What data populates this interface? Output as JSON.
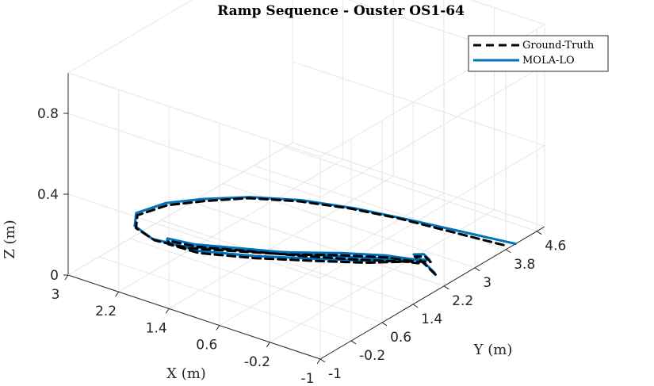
{
  "chart_data": {
    "type": "line",
    "projection": "3d",
    "title": "Ramp Sequence - Ouster OS1-64",
    "xlabel": "X (m)",
    "ylabel": "Y (m)",
    "zlabel": "Z (m)",
    "x_ticks": [
      "3",
      "2.2",
      "1.4",
      "0.6",
      "-0.2",
      "-1"
    ],
    "y_ticks": [
      "-1",
      "-0.2",
      "0.6",
      "1.4",
      "2.2",
      "3",
      "3.8",
      "4.6"
    ],
    "z_ticks": [
      "0",
      "0.4",
      "0.8"
    ],
    "xlim": [
      -1,
      3
    ],
    "ylim": [
      -1,
      4.8
    ],
    "zlim": [
      0,
      1
    ],
    "grid": true,
    "legend": {
      "placement": "top-right",
      "entries": [
        "Ground-Truth",
        "MOLA-LO"
      ]
    },
    "series": [
      {
        "name": "Ground-Truth",
        "color": "#000000",
        "style": "dashed",
        "points": [
          [
            -0.9,
            3.9,
            0.0
          ],
          [
            -0.3,
            3.5,
            0.05
          ],
          [
            0.3,
            3.1,
            0.1
          ],
          [
            0.8,
            2.7,
            0.14
          ],
          [
            1.3,
            2.2,
            0.18
          ],
          [
            1.8,
            1.7,
            0.2
          ],
          [
            2.2,
            1.2,
            0.2
          ],
          [
            2.5,
            0.75,
            0.2
          ],
          [
            2.7,
            0.3,
            0.18
          ],
          [
            2.6,
            0.1,
            0.15
          ],
          [
            2.3,
            0.1,
            0.12
          ],
          [
            1.9,
            0.3,
            0.1
          ],
          [
            1.4,
            0.8,
            0.08
          ],
          [
            0.9,
            1.3,
            0.06
          ],
          [
            0.4,
            1.9,
            0.04
          ],
          [
            0.0,
            2.35,
            0.02
          ],
          [
            -0.25,
            2.6,
            0.0
          ],
          [
            -0.35,
            2.6,
            0.0
          ],
          [
            -0.25,
            2.4,
            0.02
          ],
          [
            0.15,
            1.85,
            0.05
          ],
          [
            0.7,
            1.25,
            0.08
          ],
          [
            1.25,
            0.7,
            0.11
          ],
          [
            1.75,
            0.25,
            0.13
          ],
          [
            2.05,
            0.05,
            0.15
          ],
          [
            2.0,
            -0.05,
            0.15
          ],
          [
            1.6,
            0.1,
            0.13
          ],
          [
            1.05,
            0.65,
            0.1
          ],
          [
            0.5,
            1.3,
            0.07
          ],
          [
            0.05,
            1.9,
            0.04
          ],
          [
            -0.3,
            2.45,
            0.02
          ],
          [
            -0.45,
            2.75,
            0.0
          ],
          [
            -0.3,
            2.85,
            0.0
          ],
          [
            -0.2,
            2.75,
            0.0
          ],
          [
            -0.45,
            2.55,
            0.02
          ],
          [
            -0.9,
            2.15,
            0.05
          ]
        ]
      },
      {
        "name": "MOLA-LO",
        "color": "#0072BD",
        "style": "solid",
        "points": [
          [
            -1.0,
            4.05,
            0.0
          ],
          [
            -0.4,
            3.6,
            0.05
          ],
          [
            0.2,
            3.15,
            0.1
          ],
          [
            0.75,
            2.75,
            0.14
          ],
          [
            1.3,
            2.25,
            0.18
          ],
          [
            1.8,
            1.75,
            0.2
          ],
          [
            2.25,
            1.25,
            0.2
          ],
          [
            2.55,
            0.8,
            0.2
          ],
          [
            2.75,
            0.35,
            0.18
          ],
          [
            2.65,
            0.15,
            0.15
          ],
          [
            2.35,
            0.12,
            0.12
          ],
          [
            1.95,
            0.32,
            0.1
          ],
          [
            1.45,
            0.82,
            0.08
          ],
          [
            0.95,
            1.35,
            0.06
          ],
          [
            0.45,
            1.95,
            0.04
          ],
          [
            0.05,
            2.4,
            0.02
          ],
          [
            -0.2,
            2.65,
            0.0
          ],
          [
            -0.32,
            2.7,
            0.0
          ],
          [
            -0.2,
            2.48,
            0.02
          ],
          [
            0.2,
            1.9,
            0.05
          ],
          [
            0.75,
            1.3,
            0.08
          ],
          [
            1.3,
            0.75,
            0.11
          ],
          [
            1.8,
            0.3,
            0.13
          ],
          [
            2.1,
            0.1,
            0.15
          ],
          [
            2.05,
            0.0,
            0.15
          ],
          [
            1.65,
            0.15,
            0.13
          ],
          [
            1.1,
            0.7,
            0.1
          ],
          [
            0.55,
            1.35,
            0.07
          ],
          [
            0.1,
            1.95,
            0.04
          ],
          [
            -0.25,
            2.5,
            0.02
          ],
          [
            -0.4,
            2.8,
            0.0
          ],
          [
            -0.25,
            2.9,
            0.0
          ],
          [
            -0.15,
            2.8,
            0.0
          ],
          [
            -0.4,
            2.6,
            0.02
          ],
          [
            -0.85,
            2.2,
            0.05
          ]
        ]
      }
    ]
  }
}
